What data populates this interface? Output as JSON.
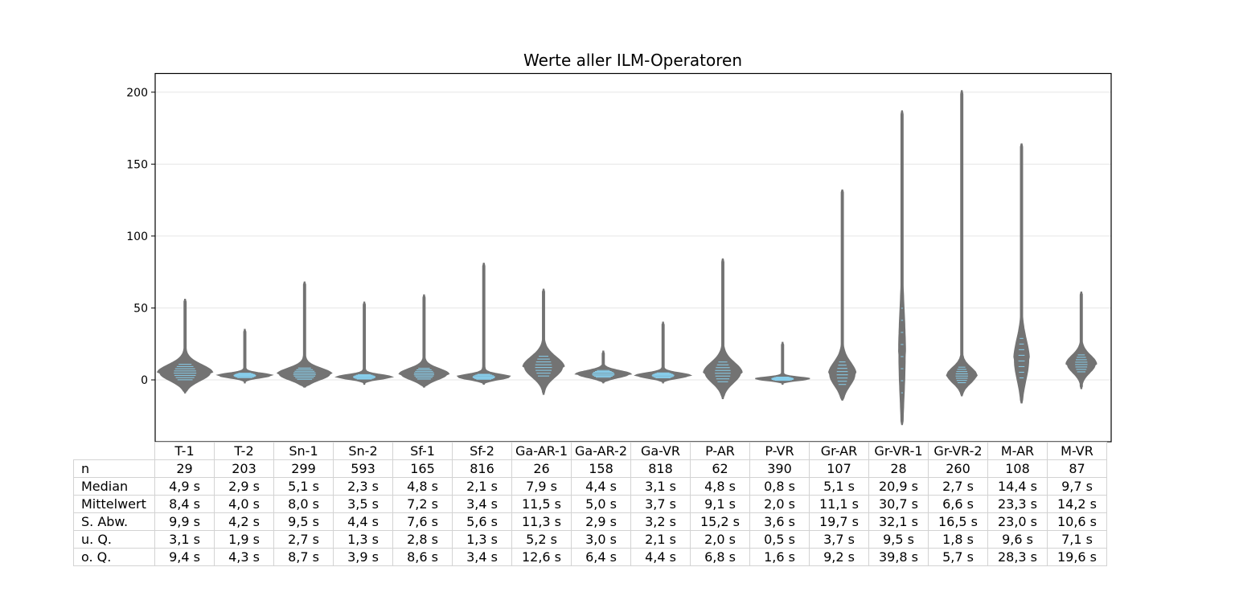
{
  "chart_data": {
    "type": "violin",
    "title": "Werte aller ILM-Operatoren",
    "ylim": [
      -43,
      213
    ],
    "yticks": [
      0,
      50,
      100,
      150,
      200
    ],
    "grid": "horizontal",
    "colors": {
      "violin": "#737373",
      "inner_lines": "#87ceeb",
      "grid": "#e6e6e6"
    },
    "categories": [
      "T-1",
      "T-2",
      "Sn-1",
      "Sn-2",
      "Sf-1",
      "Sf-2",
      "Ga-AR-1",
      "Ga-AR-2",
      "Ga-VR",
      "P-AR",
      "P-VR",
      "Gr-AR",
      "Gr-VR-1",
      "Gr-VR-2",
      "M-AR",
      "M-VR"
    ],
    "violins": [
      {
        "min": -9,
        "max": 56,
        "mode": 5.0,
        "width": 1.0,
        "spread": 5.5,
        "tail": 14
      },
      {
        "min": -2,
        "max": 35,
        "mode": 3.0,
        "width": 1.0,
        "spread": 1.6,
        "tail": 5
      },
      {
        "min": -5,
        "max": 68,
        "mode": 4.0,
        "width": 1.0,
        "spread": 4.0,
        "tail": 12
      },
      {
        "min": -3,
        "max": 54,
        "mode": 2.0,
        "width": 1.0,
        "spread": 1.6,
        "tail": 6
      },
      {
        "min": -5,
        "max": 59,
        "mode": 4.0,
        "width": 0.9,
        "spread": 3.8,
        "tail": 10
      },
      {
        "min": -3,
        "max": 81,
        "mode": 2.0,
        "width": 1.0,
        "spread": 1.8,
        "tail": 8
      },
      {
        "min": -10,
        "max": 63,
        "mode": 9.0,
        "width": 0.75,
        "spread": 7.0,
        "tail": 14
      },
      {
        "min": -2,
        "max": 20,
        "mode": 4.0,
        "width": 1.0,
        "spread": 2.4,
        "tail": 4
      },
      {
        "min": -2,
        "max": 40,
        "mode": 3.0,
        "width": 1.0,
        "spread": 1.8,
        "tail": 5
      },
      {
        "min": -13,
        "max": 84,
        "mode": 5.0,
        "width": 0.7,
        "spread": 7.0,
        "tail": 15
      },
      {
        "min": -3,
        "max": 26,
        "mode": 0.7,
        "width": 1.0,
        "spread": 1.2,
        "tail": 4
      },
      {
        "min": -14,
        "max": 132,
        "mode": 4.0,
        "width": 0.5,
        "spread": 8.0,
        "tail": 20
      },
      {
        "min": -31,
        "max": 187,
        "mode": 18.0,
        "width": 0.12,
        "spread": 30.0,
        "tail": 50
      },
      {
        "min": -11,
        "max": 201,
        "mode": 3.0,
        "width": 0.55,
        "spread": 5.5,
        "tail": 15
      },
      {
        "min": -16,
        "max": 164,
        "mode": 14.0,
        "width": 0.28,
        "spread": 14.0,
        "tail": 25
      },
      {
        "min": -6,
        "max": 61,
        "mode": 11.0,
        "width": 0.55,
        "spread": 6.0,
        "tail": 15
      }
    ],
    "table": {
      "columns": [
        "T-1",
        "T-2",
        "Sn-1",
        "Sn-2",
        "Sf-1",
        "Sf-2",
        "Ga-AR-1",
        "Ga-AR-2",
        "Ga-VR",
        "P-AR",
        "P-VR",
        "Gr-AR",
        "Gr-VR-1",
        "Gr-VR-2",
        "M-AR",
        "M-VR"
      ],
      "rows": [
        {
          "label": "n",
          "values": [
            "29",
            "203",
            "299",
            "593",
            "165",
            "816",
            "26",
            "158",
            "818",
            "62",
            "390",
            "107",
            "28",
            "260",
            "108",
            "87"
          ]
        },
        {
          "label": "Median",
          "values": [
            "4,9 s",
            "2,9 s",
            "5,1 s",
            "2,3 s",
            "4,8 s",
            "2,1 s",
            "7,9 s",
            "4,4 s",
            "3,1 s",
            "4,8 s",
            "0,8 s",
            "5,1 s",
            "20,9 s",
            "2,7 s",
            "14,4 s",
            "9,7 s"
          ]
        },
        {
          "label": "Mittelwert",
          "values": [
            "8,4 s",
            "4,0 s",
            "8,0 s",
            "3,5 s",
            "7,2 s",
            "3,4 s",
            "11,5 s",
            "5,0 s",
            "3,7 s",
            "9,1 s",
            "2,0 s",
            "11,1 s",
            "30,7 s",
            "6,6 s",
            "23,3 s",
            "14,2 s"
          ]
        },
        {
          "label": "S. Abw.",
          "values": [
            "9,9 s",
            "4,2 s",
            "9,5 s",
            "4,4 s",
            "7,6 s",
            "5,6 s",
            "11,3 s",
            "2,9 s",
            "3,2 s",
            "15,2 s",
            "3,6 s",
            "19,7 s",
            "32,1 s",
            "16,5 s",
            "23,0 s",
            "10,6 s"
          ]
        },
        {
          "label": "u. Q.",
          "values": [
            "3,1 s",
            "1,9 s",
            "2,7 s",
            "1,3 s",
            "2,8 s",
            "1,3 s",
            "5,2 s",
            "3,0 s",
            "2,1 s",
            "2,0 s",
            "0,5 s",
            "3,7 s",
            "9,5 s",
            "1,8 s",
            "9,6 s",
            "7,1 s"
          ]
        },
        {
          "label": "o. Q.",
          "values": [
            "9,4 s",
            "4,3 s",
            "8,7 s",
            "3,9 s",
            "8,6 s",
            "3,4 s",
            "12,6 s",
            "6,4 s",
            "4,4 s",
            "6,8 s",
            "1,6 s",
            "9,2 s",
            "39,8 s",
            "5,7 s",
            "28,3 s",
            "19,6 s"
          ]
        }
      ]
    }
  }
}
